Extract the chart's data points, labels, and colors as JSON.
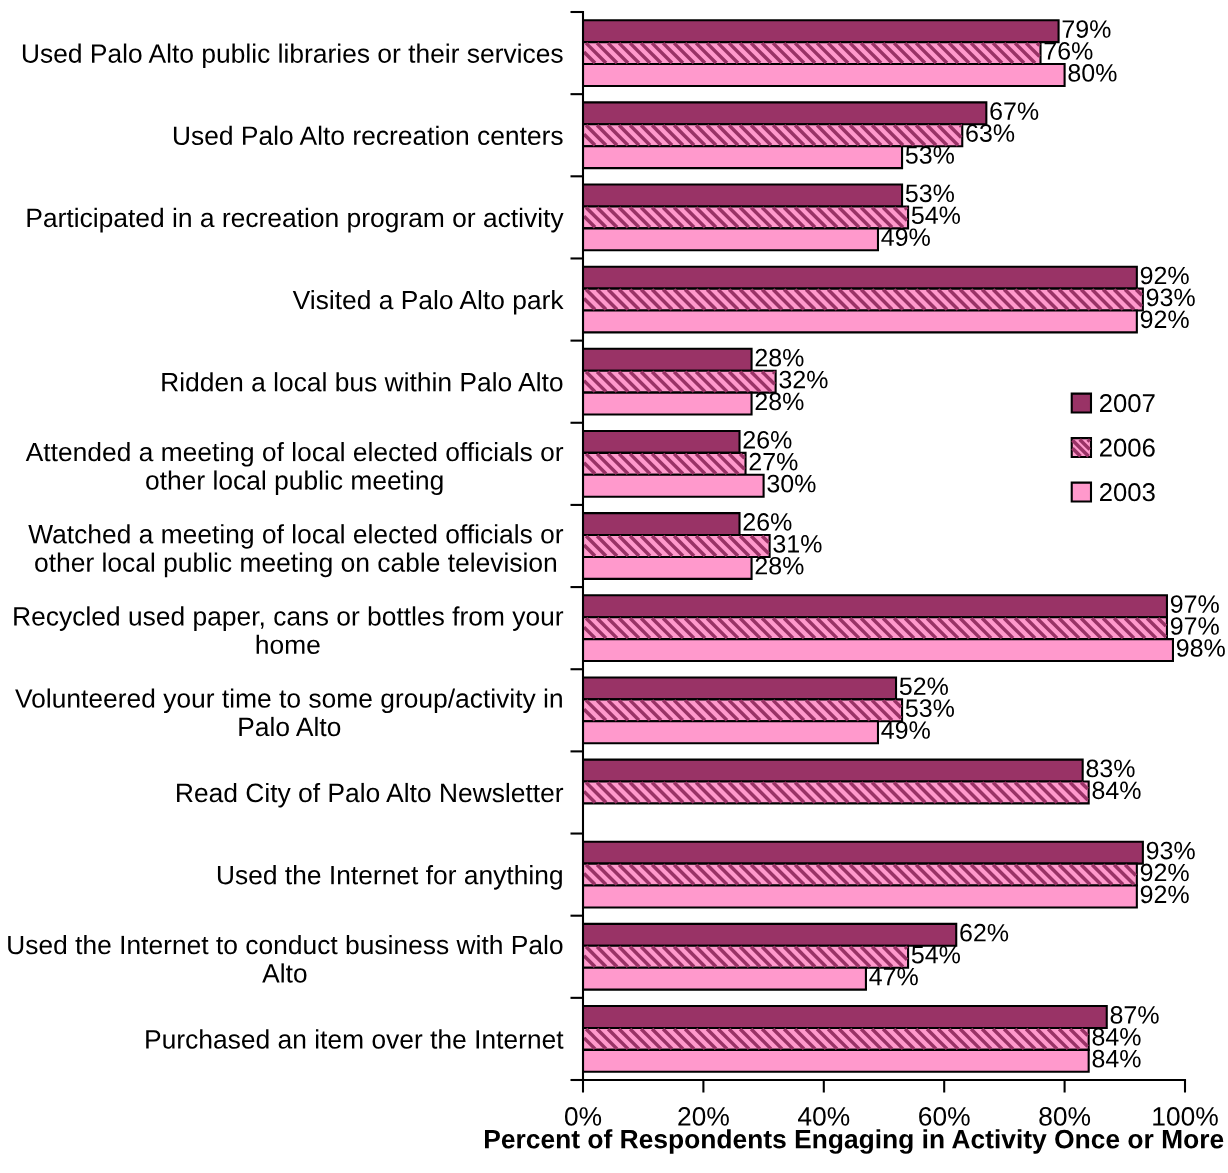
{
  "chart_data": {
    "type": "bar",
    "orientation": "horizontal",
    "xlabel": "Percent of Respondents Engaging in Activity Once or More",
    "categories": [
      "Used Palo Alto public libraries or their services",
      "Used Palo Alto recreation centers",
      "Participated in a recreation program or activity",
      "Visited a Palo Alto park",
      "Ridden a local bus within Palo Alto",
      "Attended a meeting of local elected officials or other local public meeting",
      "Watched a meeting of local elected officials or other local public meeting on cable television",
      "Recycled used paper, cans or bottles from your home",
      "Volunteered your time to some group/activity in Palo Alto",
      "Read City of Palo Alto Newsletter",
      "Used the Internet for anything",
      "Used the Internet to conduct business with Palo Alto",
      "Purchased an item over the Internet"
    ],
    "series": [
      {
        "name": "2007",
        "color": "#993366",
        "values": [
          79,
          67,
          53,
          92,
          28,
          26,
          26,
          97,
          52,
          83,
          93,
          62,
          87
        ],
        "value_labels": [
          "79%",
          "67%",
          "53%",
          "92%",
          "28%",
          "26%",
          "26%",
          "97%",
          "52%",
          "83%",
          "93%",
          "62%",
          "87%"
        ]
      },
      {
        "name": "2006",
        "color": "#ff99cc",
        "values": [
          76,
          63,
          54,
          93,
          32,
          27,
          31,
          97,
          53,
          84,
          92,
          54,
          84
        ],
        "value_labels": [
          "76%",
          "63%",
          "54%",
          "93%",
          "32%",
          "27%",
          "31%",
          "97%",
          "53%",
          "84%",
          "92%",
          "54%",
          "84%"
        ]
      },
      {
        "name": "2003",
        "color": "#ff99cc",
        "values": [
          80,
          53,
          49,
          92,
          28,
          30,
          28,
          98,
          49,
          null,
          92,
          47,
          84
        ],
        "value_labels": [
          "80%",
          "53%",
          "49%",
          "92%",
          "28%",
          "30%",
          "28%",
          "98%",
          "49%",
          null,
          "92%",
          "47%",
          "84%"
        ]
      }
    ],
    "xlim": [
      0,
      100
    ],
    "xticks": [
      {
        "value": 0,
        "label": "0%"
      },
      {
        "value": 20,
        "label": "20%"
      },
      {
        "value": 40,
        "label": "40%"
      },
      {
        "value": 60,
        "label": "60%"
      },
      {
        "value": 80,
        "label": "80%"
      },
      {
        "value": 100,
        "label": "100%"
      }
    ],
    "legend": "right"
  }
}
